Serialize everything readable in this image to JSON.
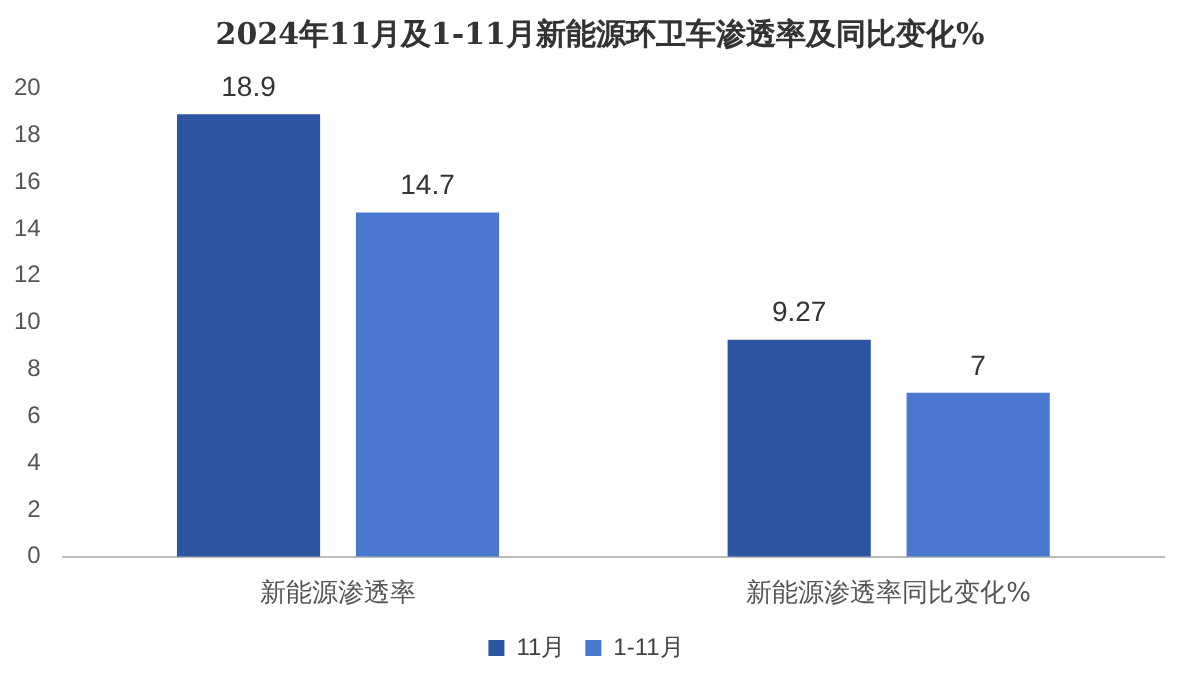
{
  "chart_data": {
    "type": "bar",
    "title": "2024年11月及1-11月新能源环卫车渗透率及同比变化%",
    "categories": [
      "新能源渗透率",
      "新能源渗透率同比变化%"
    ],
    "series": [
      {
        "name": "11月",
        "color": "#2e55a2",
        "values": [
          18.9,
          9.27
        ]
      },
      {
        "name": "1-11月",
        "color": "#4a78cf",
        "values": [
          14.7,
          7
        ]
      }
    ],
    "ylim": [
      0,
      20
    ],
    "yticks": [
      0,
      2,
      4,
      6,
      8,
      10,
      12,
      14,
      16,
      18,
      20
    ],
    "grid": false,
    "legend": "bottom",
    "data_labels": true
  }
}
